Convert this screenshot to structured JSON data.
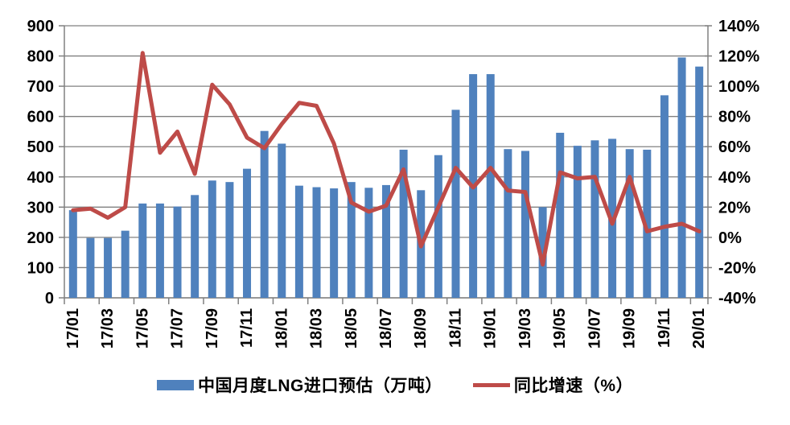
{
  "chart_data": {
    "type": "bar+line combo",
    "title": "",
    "categories": [
      "17/01",
      "17/02",
      "17/03",
      "17/04",
      "17/05",
      "17/06",
      "17/07",
      "17/08",
      "17/09",
      "17/10",
      "17/11",
      "17/12",
      "18/01",
      "18/02",
      "18/03",
      "18/04",
      "18/05",
      "18/06",
      "18/07",
      "18/08",
      "18/09",
      "18/10",
      "18/11",
      "18/12",
      "19/01",
      "19/02",
      "19/03",
      "19/04",
      "19/05",
      "19/06",
      "19/07",
      "19/08",
      "19/09",
      "19/10",
      "19/11",
      "19/12",
      "20/01"
    ],
    "series": [
      {
        "name": "中国月度LNG进口预估（万吨）",
        "type": "bar",
        "axis": "left",
        "color": "#4F81BD",
        "values": [
          290,
          198,
          198,
          222,
          312,
          312,
          302,
          340,
          388,
          383,
          427,
          552,
          510,
          371,
          366,
          362,
          383,
          364,
          373,
          490,
          356,
          472,
          622,
          740,
          740,
          492,
          486,
          300,
          546,
          503,
          521,
          526,
          492,
          490,
          670,
          795,
          765
        ]
      },
      {
        "name": "同比增速（%）",
        "type": "line",
        "axis": "right",
        "color": "#BE4B48",
        "values": [
          18,
          19,
          13,
          20,
          122,
          56,
          70,
          42,
          101,
          88,
          66,
          59,
          75,
          89,
          87,
          62,
          23,
          17,
          21,
          45,
          -6,
          20,
          46,
          33,
          46,
          31,
          30,
          -18,
          43,
          39,
          40,
          9,
          40,
          4,
          7,
          9,
          4
        ]
      }
    ],
    "left_axis": {
      "min": 0,
      "max": 900,
      "step": 100,
      "tick_labels": [
        "900",
        "800",
        "700",
        "600",
        "500",
        "400",
        "300",
        "200",
        "100",
        "0"
      ]
    },
    "right_axis": {
      "min": -40,
      "max": 140,
      "step": 20,
      "tick_labels": [
        "140%",
        "120%",
        "100%",
        "80%",
        "60%",
        "40%",
        "20%",
        "0%",
        "-20%",
        "-40%"
      ]
    },
    "x_tick_label_interval": 2,
    "x_tick_labels_shown": [
      "17/01",
      "17/03",
      "17/05",
      "17/07",
      "17/09",
      "17/11",
      "18/01",
      "18/03",
      "18/05",
      "18/07",
      "18/09",
      "18/11",
      "19/01",
      "19/03",
      "19/05",
      "19/07",
      "19/09",
      "19/11",
      "20/01"
    ],
    "grid": true,
    "legend_position": "bottom",
    "colors": {
      "grid": "#808080",
      "axis": "#808080",
      "text": "#000000",
      "background": "#FFFFFF"
    }
  }
}
